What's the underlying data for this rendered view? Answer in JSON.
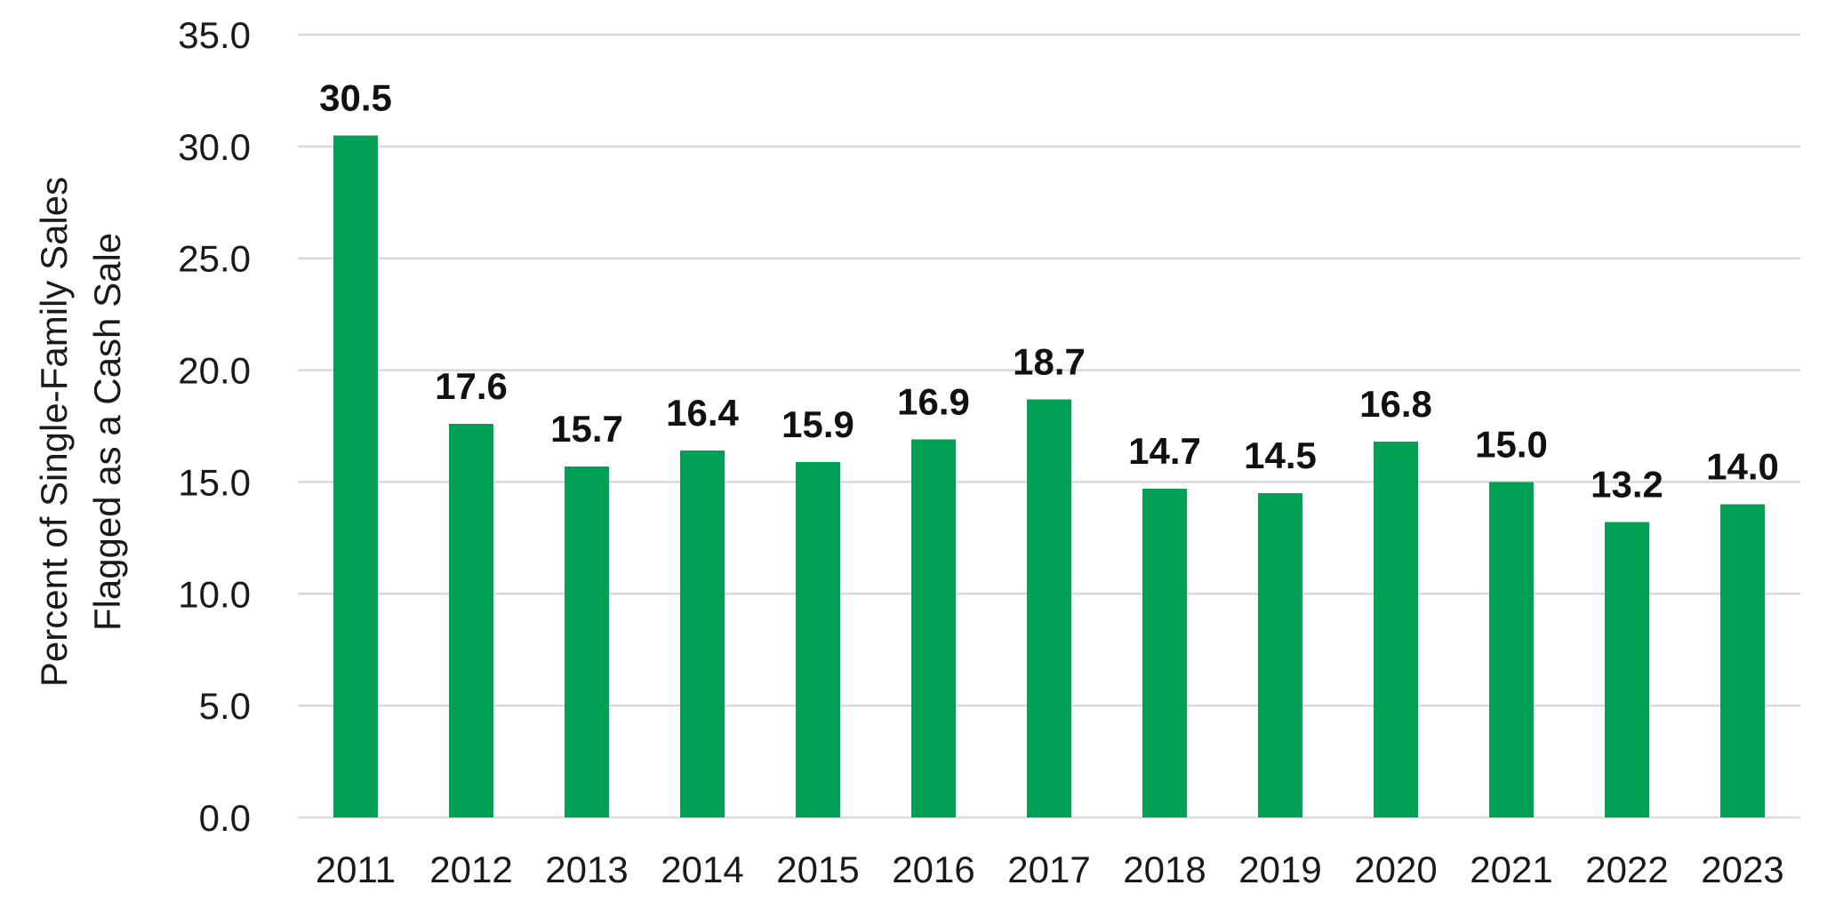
{
  "chart_data": {
    "type": "bar",
    "title": "",
    "xlabel": "",
    "ylabel_lines": [
      "Percent of Single-Family Sales",
      "Flagged as a Cash Sale"
    ],
    "categories": [
      "2011",
      "2012",
      "2013",
      "2014",
      "2015",
      "2016",
      "2017",
      "2018",
      "2019",
      "2020",
      "2021",
      "2022",
      "2023"
    ],
    "values": [
      30.5,
      17.6,
      15.7,
      16.4,
      15.9,
      16.9,
      18.7,
      14.7,
      14.5,
      16.8,
      15.0,
      13.2,
      14.0
    ],
    "data_labels": [
      "30.5",
      "17.6",
      "15.7",
      "16.4",
      "15.9",
      "16.9",
      "18.7",
      "14.7",
      "14.5",
      "16.8",
      "15.0",
      "13.2",
      "14.0"
    ],
    "ylim": [
      0,
      35
    ],
    "yticks": [
      0,
      5,
      10,
      15,
      20,
      25,
      30,
      35
    ],
    "ytick_labels": [
      "0.0",
      "5.0",
      "10.0",
      "15.0",
      "20.0",
      "25.0",
      "30.0",
      "35.0"
    ],
    "grid": true,
    "legend": "none",
    "bar_color": "#00a055",
    "grid_color": "#d9d9d9"
  }
}
